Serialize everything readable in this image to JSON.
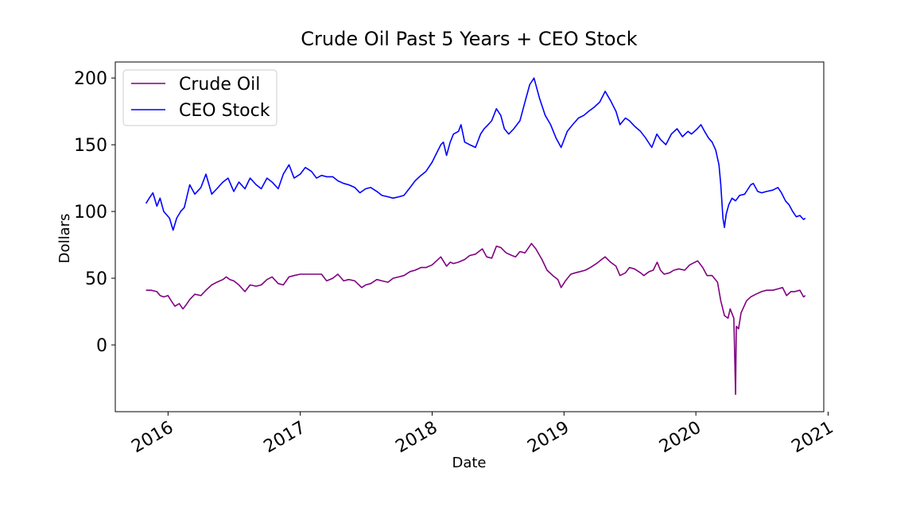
{
  "chart_data": {
    "type": "line",
    "title": "Crude Oil Past 5 Years + CEO Stock",
    "xlabel": "Date",
    "ylabel": "Dollars",
    "xlim": [
      "2015-08-08",
      "2020-12-20"
    ],
    "ylim": [
      -50,
      212
    ],
    "xticks": [
      {
        "label": "2016",
        "date": "2016-01-01"
      },
      {
        "label": "2017",
        "date": "2017-01-01"
      },
      {
        "label": "2018",
        "date": "2018-01-01"
      },
      {
        "label": "2019",
        "date": "2019-01-01"
      },
      {
        "label": "2020",
        "date": "2020-01-01"
      },
      {
        "label": "2021",
        "date": "2021-01-01"
      }
    ],
    "yticks": [
      0,
      50,
      100,
      150,
      200
    ],
    "grid": false,
    "legend_position": "upper-left",
    "series": [
      {
        "name": "Crude Oil",
        "color": "#800080",
        "points": [
          [
            "2015-11-01",
            41
          ],
          [
            "2015-11-15",
            41
          ],
          [
            "2015-12-01",
            40
          ],
          [
            "2015-12-10",
            37
          ],
          [
            "2015-12-20",
            36
          ],
          [
            "2016-01-01",
            37
          ],
          [
            "2016-01-10",
            33
          ],
          [
            "2016-01-20",
            29
          ],
          [
            "2016-02-01",
            31
          ],
          [
            "2016-02-11",
            27
          ],
          [
            "2016-02-20",
            30
          ],
          [
            "2016-03-01",
            34
          ],
          [
            "2016-03-15",
            38
          ],
          [
            "2016-04-01",
            37
          ],
          [
            "2016-04-15",
            41
          ],
          [
            "2016-05-01",
            45
          ],
          [
            "2016-05-15",
            47
          ],
          [
            "2016-06-01",
            49
          ],
          [
            "2016-06-10",
            51
          ],
          [
            "2016-06-20",
            49
          ],
          [
            "2016-07-01",
            48
          ],
          [
            "2016-07-15",
            45
          ],
          [
            "2016-08-01",
            40
          ],
          [
            "2016-08-15",
            45
          ],
          [
            "2016-09-01",
            44
          ],
          [
            "2016-09-15",
            45
          ],
          [
            "2016-10-01",
            49
          ],
          [
            "2016-10-15",
            51
          ],
          [
            "2016-11-01",
            46
          ],
          [
            "2016-11-15",
            45
          ],
          [
            "2016-12-01",
            51
          ],
          [
            "2016-12-15",
            52
          ],
          [
            "2017-01-01",
            53
          ],
          [
            "2017-02-01",
            53
          ],
          [
            "2017-03-01",
            53
          ],
          [
            "2017-03-15",
            48
          ],
          [
            "2017-04-01",
            50
          ],
          [
            "2017-04-15",
            53
          ],
          [
            "2017-05-01",
            48
          ],
          [
            "2017-05-15",
            49
          ],
          [
            "2017-06-01",
            48
          ],
          [
            "2017-06-20",
            43
          ],
          [
            "2017-07-01",
            45
          ],
          [
            "2017-07-15",
            46
          ],
          [
            "2017-08-01",
            49
          ],
          [
            "2017-08-15",
            48
          ],
          [
            "2017-09-01",
            47
          ],
          [
            "2017-09-15",
            50
          ],
          [
            "2017-10-01",
            51
          ],
          [
            "2017-10-15",
            52
          ],
          [
            "2017-11-01",
            55
          ],
          [
            "2017-11-15",
            56
          ],
          [
            "2017-12-01",
            58
          ],
          [
            "2017-12-15",
            58
          ],
          [
            "2018-01-01",
            60
          ],
          [
            "2018-01-25",
            66
          ],
          [
            "2018-02-10",
            59
          ],
          [
            "2018-02-20",
            62
          ],
          [
            "2018-03-01",
            61
          ],
          [
            "2018-03-15",
            62
          ],
          [
            "2018-04-01",
            64
          ],
          [
            "2018-04-15",
            67
          ],
          [
            "2018-05-01",
            68
          ],
          [
            "2018-05-20",
            72
          ],
          [
            "2018-06-01",
            66
          ],
          [
            "2018-06-15",
            65
          ],
          [
            "2018-06-28",
            74
          ],
          [
            "2018-07-10",
            73
          ],
          [
            "2018-07-25",
            69
          ],
          [
            "2018-08-10",
            67
          ],
          [
            "2018-08-20",
            66
          ],
          [
            "2018-09-01",
            70
          ],
          [
            "2018-09-15",
            69
          ],
          [
            "2018-10-03",
            76
          ],
          [
            "2018-10-15",
            72
          ],
          [
            "2018-11-01",
            64
          ],
          [
            "2018-11-15",
            56
          ],
          [
            "2018-12-01",
            52
          ],
          [
            "2018-12-15",
            49
          ],
          [
            "2018-12-24",
            43
          ],
          [
            "2019-01-05",
            48
          ],
          [
            "2019-01-20",
            53
          ],
          [
            "2019-02-01",
            54
          ],
          [
            "2019-02-15",
            55
          ],
          [
            "2019-03-01",
            56
          ],
          [
            "2019-03-15",
            58
          ],
          [
            "2019-04-01",
            61
          ],
          [
            "2019-04-15",
            64
          ],
          [
            "2019-04-25",
            66
          ],
          [
            "2019-05-10",
            62
          ],
          [
            "2019-05-25",
            59
          ],
          [
            "2019-06-05",
            52
          ],
          [
            "2019-06-20",
            54
          ],
          [
            "2019-07-01",
            58
          ],
          [
            "2019-07-15",
            57
          ],
          [
            "2019-08-01",
            54
          ],
          [
            "2019-08-10",
            52
          ],
          [
            "2019-08-25",
            55
          ],
          [
            "2019-09-05",
            56
          ],
          [
            "2019-09-16",
            62
          ],
          [
            "2019-09-25",
            56
          ],
          [
            "2019-10-05",
            53
          ],
          [
            "2019-10-20",
            54
          ],
          [
            "2019-11-01",
            56
          ],
          [
            "2019-11-15",
            57
          ],
          [
            "2019-12-01",
            56
          ],
          [
            "2019-12-15",
            60
          ],
          [
            "2020-01-06",
            63
          ],
          [
            "2020-01-20",
            58
          ],
          [
            "2020-02-01",
            52
          ],
          [
            "2020-02-15",
            52
          ],
          [
            "2020-03-01",
            47
          ],
          [
            "2020-03-10",
            33
          ],
          [
            "2020-03-20",
            22
          ],
          [
            "2020-03-30",
            20
          ],
          [
            "2020-04-05",
            27
          ],
          [
            "2020-04-15",
            20
          ],
          [
            "2020-04-20",
            -37
          ],
          [
            "2020-04-22",
            14
          ],
          [
            "2020-04-28",
            12
          ],
          [
            "2020-05-05",
            24
          ],
          [
            "2020-05-20",
            33
          ],
          [
            "2020-06-01",
            36
          ],
          [
            "2020-06-15",
            38
          ],
          [
            "2020-07-01",
            40
          ],
          [
            "2020-07-15",
            41
          ],
          [
            "2020-08-01",
            41
          ],
          [
            "2020-08-15",
            42
          ],
          [
            "2020-08-28",
            43
          ],
          [
            "2020-09-08",
            37
          ],
          [
            "2020-09-20",
            40
          ],
          [
            "2020-10-01",
            40
          ],
          [
            "2020-10-15",
            41
          ],
          [
            "2020-10-25",
            36
          ],
          [
            "2020-10-30",
            37
          ]
        ]
      },
      {
        "name": "CEO Stock",
        "color": "#0000ff",
        "points": [
          [
            "2015-11-01",
            106
          ],
          [
            "2015-11-10",
            110
          ],
          [
            "2015-11-20",
            114
          ],
          [
            "2015-12-01",
            104
          ],
          [
            "2015-12-10",
            110
          ],
          [
            "2015-12-20",
            100
          ],
          [
            "2016-01-05",
            95
          ],
          [
            "2016-01-15",
            86
          ],
          [
            "2016-01-25",
            95
          ],
          [
            "2016-02-05",
            100
          ],
          [
            "2016-02-15",
            103
          ],
          [
            "2016-03-01",
            120
          ],
          [
            "2016-03-15",
            113
          ],
          [
            "2016-04-01",
            118
          ],
          [
            "2016-04-15",
            128
          ],
          [
            "2016-05-01",
            113
          ],
          [
            "2016-05-15",
            117
          ],
          [
            "2016-06-01",
            122
          ],
          [
            "2016-06-15",
            125
          ],
          [
            "2016-07-01",
            115
          ],
          [
            "2016-07-15",
            122
          ],
          [
            "2016-08-01",
            117
          ],
          [
            "2016-08-15",
            125
          ],
          [
            "2016-09-01",
            120
          ],
          [
            "2016-09-15",
            117
          ],
          [
            "2016-10-01",
            125
          ],
          [
            "2016-10-15",
            122
          ],
          [
            "2016-11-01",
            117
          ],
          [
            "2016-11-15",
            128
          ],
          [
            "2016-12-01",
            135
          ],
          [
            "2016-12-15",
            125
          ],
          [
            "2017-01-01",
            128
          ],
          [
            "2017-01-15",
            133
          ],
          [
            "2017-02-01",
            130
          ],
          [
            "2017-02-15",
            125
          ],
          [
            "2017-03-01",
            127
          ],
          [
            "2017-03-15",
            126
          ],
          [
            "2017-04-01",
            126
          ],
          [
            "2017-04-15",
            123
          ],
          [
            "2017-05-01",
            121
          ],
          [
            "2017-05-15",
            120
          ],
          [
            "2017-06-01",
            118
          ],
          [
            "2017-06-15",
            114
          ],
          [
            "2017-07-01",
            117
          ],
          [
            "2017-07-15",
            118
          ],
          [
            "2017-08-01",
            115
          ],
          [
            "2017-08-15",
            112
          ],
          [
            "2017-09-01",
            111
          ],
          [
            "2017-09-15",
            110
          ],
          [
            "2017-10-01",
            111
          ],
          [
            "2017-10-15",
            112
          ],
          [
            "2017-11-01",
            118
          ],
          [
            "2017-11-15",
            123
          ],
          [
            "2017-12-01",
            127
          ],
          [
            "2017-12-15",
            130
          ],
          [
            "2018-01-01",
            137
          ],
          [
            "2018-01-10",
            142
          ],
          [
            "2018-01-25",
            150
          ],
          [
            "2018-02-01",
            152
          ],
          [
            "2018-02-10",
            142
          ],
          [
            "2018-02-20",
            152
          ],
          [
            "2018-03-01",
            158
          ],
          [
            "2018-03-15",
            160
          ],
          [
            "2018-03-22",
            165
          ],
          [
            "2018-04-01",
            152
          ],
          [
            "2018-04-15",
            150
          ],
          [
            "2018-05-01",
            148
          ],
          [
            "2018-05-15",
            158
          ],
          [
            "2018-05-25",
            162
          ],
          [
            "2018-06-05",
            165
          ],
          [
            "2018-06-15",
            168
          ],
          [
            "2018-06-28",
            177
          ],
          [
            "2018-07-10",
            172
          ],
          [
            "2018-07-20",
            162
          ],
          [
            "2018-08-01",
            158
          ],
          [
            "2018-08-15",
            162
          ],
          [
            "2018-09-01",
            168
          ],
          [
            "2018-09-15",
            182
          ],
          [
            "2018-09-28",
            195
          ],
          [
            "2018-10-10",
            200
          ],
          [
            "2018-10-25",
            185
          ],
          [
            "2018-11-10",
            172
          ],
          [
            "2018-11-25",
            165
          ],
          [
            "2018-12-10",
            155
          ],
          [
            "2018-12-24",
            148
          ],
          [
            "2019-01-10",
            160
          ],
          [
            "2019-01-25",
            165
          ],
          [
            "2019-02-10",
            170
          ],
          [
            "2019-02-25",
            172
          ],
          [
            "2019-03-10",
            175
          ],
          [
            "2019-03-25",
            178
          ],
          [
            "2019-04-10",
            182
          ],
          [
            "2019-04-25",
            190
          ],
          [
            "2019-05-10",
            183
          ],
          [
            "2019-05-25",
            175
          ],
          [
            "2019-06-05",
            165
          ],
          [
            "2019-06-20",
            170
          ],
          [
            "2019-07-01",
            168
          ],
          [
            "2019-07-15",
            164
          ],
          [
            "2019-08-01",
            160
          ],
          [
            "2019-08-15",
            155
          ],
          [
            "2019-09-01",
            148
          ],
          [
            "2019-09-15",
            158
          ],
          [
            "2019-09-25",
            154
          ],
          [
            "2019-10-10",
            150
          ],
          [
            "2019-10-25",
            158
          ],
          [
            "2019-11-10",
            162
          ],
          [
            "2019-11-25",
            156
          ],
          [
            "2019-12-10",
            160
          ],
          [
            "2019-12-20",
            158
          ],
          [
            "2020-01-05",
            162
          ],
          [
            "2020-01-15",
            165
          ],
          [
            "2020-01-25",
            160
          ],
          [
            "2020-02-05",
            155
          ],
          [
            "2020-02-15",
            152
          ],
          [
            "2020-02-25",
            146
          ],
          [
            "2020-03-05",
            135
          ],
          [
            "2020-03-10",
            120
          ],
          [
            "2020-03-16",
            95
          ],
          [
            "2020-03-20",
            88
          ],
          [
            "2020-03-25",
            98
          ],
          [
            "2020-04-01",
            105
          ],
          [
            "2020-04-10",
            110
          ],
          [
            "2020-04-20",
            108
          ],
          [
            "2020-05-01",
            112
          ],
          [
            "2020-05-15",
            113
          ],
          [
            "2020-06-01",
            120
          ],
          [
            "2020-06-08",
            121
          ],
          [
            "2020-06-20",
            115
          ],
          [
            "2020-07-01",
            114
          ],
          [
            "2020-07-15",
            115
          ],
          [
            "2020-08-01",
            116
          ],
          [
            "2020-08-15",
            118
          ],
          [
            "2020-08-25",
            114
          ],
          [
            "2020-09-05",
            108
          ],
          [
            "2020-09-15",
            105
          ],
          [
            "2020-09-25",
            100
          ],
          [
            "2020-10-05",
            96
          ],
          [
            "2020-10-15",
            97
          ],
          [
            "2020-10-25",
            94
          ],
          [
            "2020-10-30",
            95
          ]
        ]
      }
    ]
  }
}
